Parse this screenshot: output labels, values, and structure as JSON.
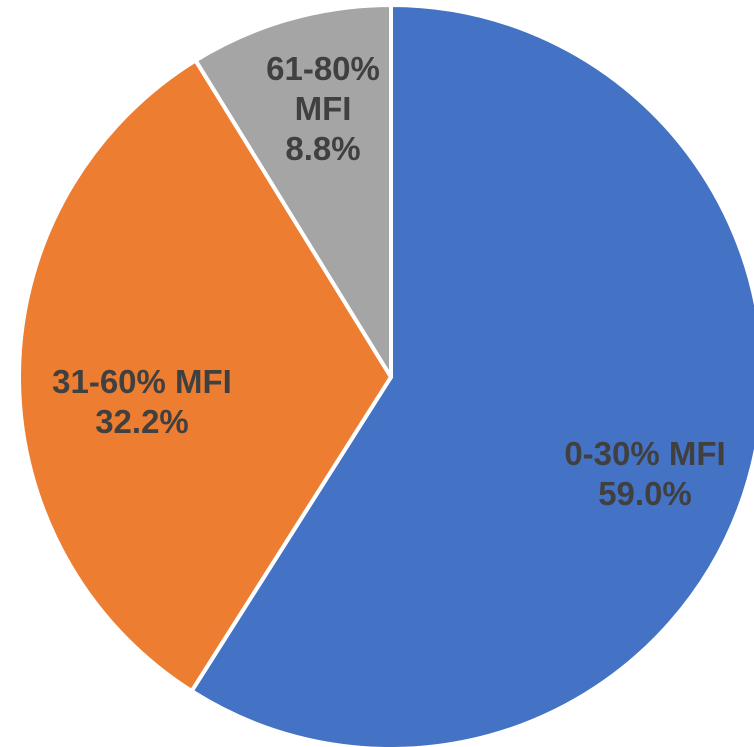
{
  "chart_data": {
    "type": "pie",
    "categories": [
      "0-30% MFI",
      "31-60% MFI",
      "61-80% MFI"
    ],
    "values": [
      59.0,
      32.2,
      8.8
    ],
    "value_labels": [
      "59.0%",
      "32.2%",
      "8.8%"
    ],
    "colors": [
      "#4472C4",
      "#ED7D31",
      "#A5A5A5"
    ],
    "start_angle": "12 o'clock",
    "direction": "clockwise",
    "title": "",
    "legend": "none",
    "data_labels": "category name and percentage, inside slices"
  }
}
